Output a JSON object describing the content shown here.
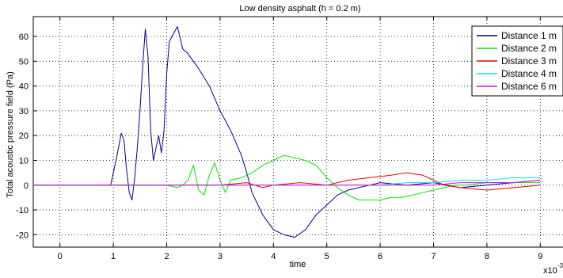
{
  "chart_data": {
    "type": "line",
    "title": "Low density asphalt (h = 0.2 m)",
    "xlabel": "time",
    "ylabel": "Total acoustic pressure field (Pa)",
    "x_multiplier": "x10",
    "x_multiplier_exponent": "-3",
    "xlim": [
      -0.5,
      9.5
    ],
    "ylim": [
      -25,
      68
    ],
    "xticks": [
      0,
      1,
      2,
      3,
      4,
      5,
      6,
      7,
      8,
      9
    ],
    "yticks": [
      -20,
      -10,
      0,
      10,
      20,
      30,
      40,
      50,
      60
    ],
    "grid": true,
    "legend_position": "top-right",
    "series": [
      {
        "name": "Distance 1 m",
        "color": "#00008f",
        "x": [
          -0.5,
          0.95,
          1.05,
          1.15,
          1.2,
          1.25,
          1.3,
          1.35,
          1.4,
          1.45,
          1.5,
          1.55,
          1.6,
          1.65,
          1.7,
          1.75,
          1.8,
          1.85,
          1.9,
          1.95,
          2.0,
          2.05,
          2.1,
          2.2,
          2.3,
          2.4,
          2.6,
          2.8,
          3.0,
          3.2,
          3.4,
          3.5,
          3.6,
          3.8,
          4.0,
          4.2,
          4.4,
          4.6,
          4.8,
          5.0,
          5.2,
          5.4,
          5.6,
          5.8,
          6.0,
          6.5,
          7.0,
          7.5,
          8.0,
          8.5,
          9.0
        ],
        "y": [
          0,
          0,
          10,
          21,
          18,
          6,
          -3,
          -6,
          3,
          15,
          30,
          48,
          63,
          52,
          22,
          10,
          15,
          20,
          13,
          22,
          45,
          58,
          60,
          64,
          55,
          53,
          47,
          40,
          30,
          22,
          12,
          5,
          -3,
          -12,
          -18,
          -20,
          -21,
          -18,
          -12,
          -8,
          -4,
          -2,
          -1,
          0,
          1,
          0,
          1,
          -1,
          0,
          1,
          2
        ]
      },
      {
        "name": "Distance 2 m",
        "color": "#00e600",
        "x": [
          -0.5,
          2.0,
          2.2,
          2.3,
          2.4,
          2.5,
          2.6,
          2.7,
          2.8,
          2.9,
          3.0,
          3.1,
          3.2,
          3.4,
          3.6,
          3.8,
          4.0,
          4.2,
          4.4,
          4.6,
          4.8,
          5.0,
          5.2,
          5.4,
          5.6,
          5.8,
          6.0,
          6.2,
          6.4,
          6.6,
          6.8,
          7.0,
          7.2,
          7.4,
          7.6,
          8.0,
          8.5,
          9.0
        ],
        "y": [
          0,
          0,
          -1,
          0,
          2,
          8,
          -2,
          -4,
          4,
          9,
          2,
          -3,
          2,
          3,
          5,
          8,
          10,
          12,
          11,
          10,
          8,
          3,
          -1,
          -4,
          -6,
          -6,
          -6,
          -5,
          -5,
          -4,
          -3,
          -2,
          -1,
          0,
          0,
          1,
          1,
          1
        ]
      },
      {
        "name": "Distance 3 m",
        "color": "#e60000",
        "x": [
          -0.5,
          3.0,
          3.5,
          3.8,
          4.0,
          4.5,
          5.0,
          5.4,
          5.8,
          6.2,
          6.5,
          6.8,
          7.0,
          7.2,
          7.5,
          8.0,
          8.5,
          9.0
        ],
        "y": [
          0,
          0,
          1,
          -1,
          0,
          1,
          0,
          2,
          3,
          4,
          5,
          4,
          2,
          0,
          -1,
          -2,
          -1,
          0
        ]
      },
      {
        "name": "Distance 4 m",
        "color": "#00e6e6",
        "x": [
          -0.5,
          5.5,
          6.0,
          6.5,
          7.0,
          7.5,
          8.0,
          8.5,
          9.0
        ],
        "y": [
          0,
          0,
          0,
          1,
          1,
          2,
          2,
          3,
          3
        ]
      },
      {
        "name": "Distance 6 m",
        "color": "#e600e6",
        "x": [
          -0.5,
          6.5,
          7.0,
          7.5,
          8.0,
          8.5,
          9.0
        ],
        "y": [
          0,
          0,
          0,
          1,
          1,
          1,
          2
        ]
      }
    ]
  }
}
